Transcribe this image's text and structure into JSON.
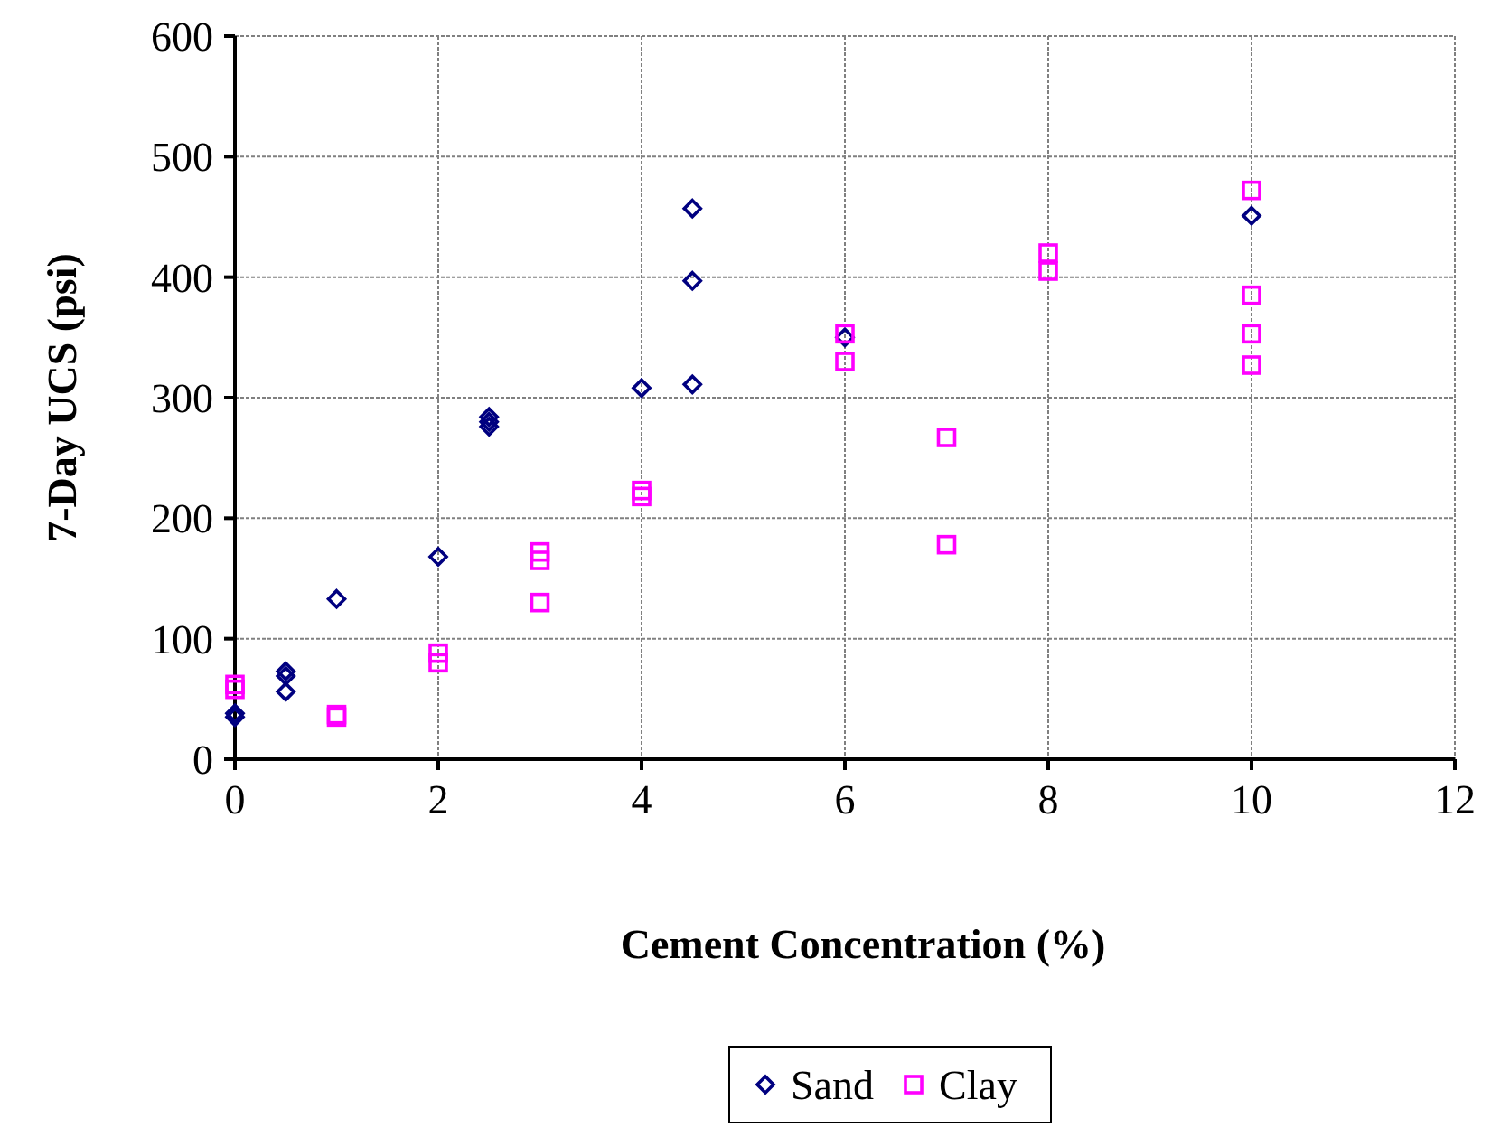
{
  "chart_data": {
    "type": "scatter",
    "xlabel": "Cement Concentration (%)",
    "ylabel": "7-Day UCS (psi)",
    "xlim": [
      0,
      12
    ],
    "xticks": [
      0,
      2,
      4,
      6,
      8,
      10,
      12
    ],
    "ylim": [
      0,
      600
    ],
    "yticks": [
      0,
      100,
      200,
      300,
      400,
      500,
      600
    ],
    "grid": true,
    "legend": "bottom",
    "series": [
      {
        "name": "Sand",
        "color": "#000080",
        "marker": "diamond",
        "x": [
          0,
          0,
          0.5,
          0.5,
          0.5,
          1,
          2,
          2.5,
          2.5,
          2.5,
          4,
          4.5,
          4.5,
          4.5,
          6,
          10
        ],
        "values": [
          35,
          38,
          73,
          69,
          56,
          133,
          168,
          284,
          280,
          276,
          308,
          457,
          397,
          311,
          350,
          451
        ]
      },
      {
        "name": "Clay",
        "color": "#ff00ff",
        "marker": "square",
        "x": [
          0,
          0,
          1,
          1,
          2,
          2,
          3,
          3,
          3,
          4,
          4,
          6,
          6,
          7,
          7,
          8,
          8,
          10,
          10,
          10,
          10
        ],
        "values": [
          62,
          58,
          37,
          35,
          88,
          80,
          172,
          165,
          130,
          223,
          218,
          353,
          330,
          267,
          178,
          420,
          405,
          472,
          385,
          353,
          327
        ]
      }
    ]
  }
}
